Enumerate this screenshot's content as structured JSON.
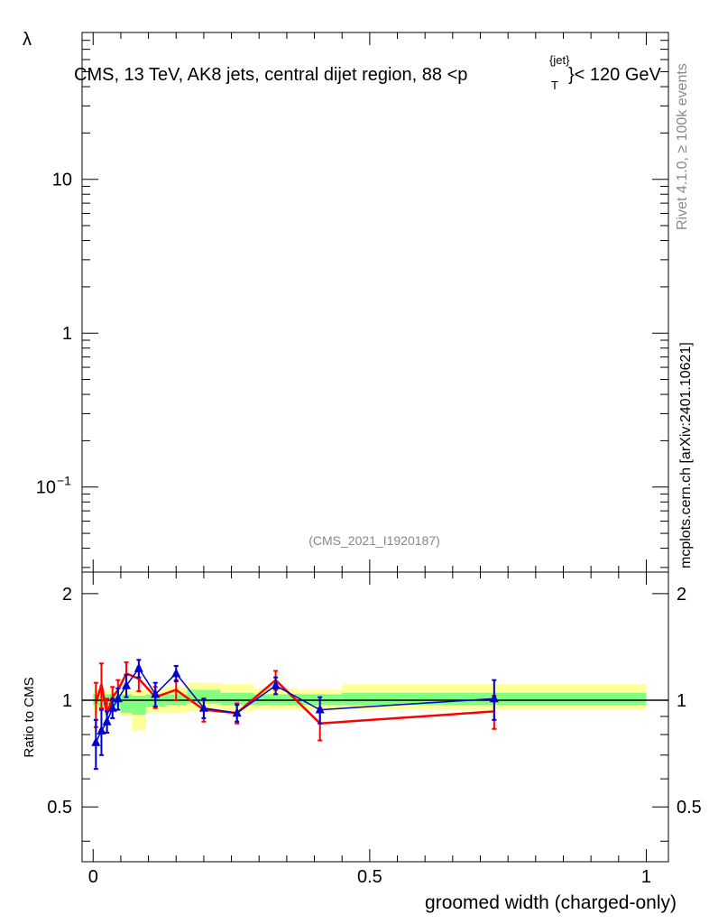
{
  "chart_data": [
    {
      "type": "line",
      "panel": "main",
      "title": "CMS, 13 TeV, AK8 jets, central dijet region, 88 <p_T^{jet}< 120 GeV",
      "title_parts": {
        "main": "CMS, 13 TeV, AK8 jets, central dijet region, 88 <p",
        "sub": "T",
        "sup": "{jet}",
        "tail": "}< 120 GeV"
      },
      "ylabel": "λ",
      "yscale": "log",
      "ylim": [
        0.028,
        90
      ],
      "y_ticks": [
        {
          "value": 10,
          "label": "10",
          "sup": ""
        },
        {
          "value": 1,
          "label": "1",
          "sup": ""
        },
        {
          "value": 0.1,
          "label": "10",
          "sup": "−1"
        }
      ],
      "xlim": [
        -0.02,
        1.04
      ],
      "analysis_label": "(CMS_2021_I1920187)",
      "series": []
    },
    {
      "type": "line",
      "panel": "ratio",
      "ylabel": "Ratio to CMS",
      "xlabel": "groomed width (charged-only)",
      "xlim": [
        -0.02,
        1.04
      ],
      "ylim": [
        0.35,
        2.3
      ],
      "x_ticks": [
        {
          "value": 0,
          "label": "0"
        },
        {
          "value": 0.5,
          "label": "0.5"
        },
        {
          "value": 1,
          "label": "1"
        }
      ],
      "y_ticks": [
        {
          "value": 0.5,
          "label": "0.5"
        },
        {
          "value": 1,
          "label": "1"
        },
        {
          "value": 2,
          "label": "2"
        }
      ],
      "reference_line": 1,
      "bands": [
        {
          "x0": 0.0,
          "x1": 0.01,
          "g": [
            0.97,
            1.04
          ],
          "y": [
            0.92,
            1.07
          ]
        },
        {
          "x0": 0.01,
          "x1": 0.02,
          "g": [
            0.96,
            1.05
          ],
          "y": [
            0.94,
            1.06
          ]
        },
        {
          "x0": 0.02,
          "x1": 0.03,
          "g": [
            0.97,
            1.04
          ],
          "y": [
            0.94,
            1.06
          ]
        },
        {
          "x0": 0.03,
          "x1": 0.04,
          "g": [
            0.97,
            1.04
          ],
          "y": [
            0.94,
            1.07
          ]
        },
        {
          "x0": 0.04,
          "x1": 0.05,
          "g": [
            0.96,
            1.04
          ],
          "y": [
            0.93,
            1.07
          ]
        },
        {
          "x0": 0.05,
          "x1": 0.07,
          "g": [
            0.92,
            1.04
          ],
          "y": [
            0.9,
            1.06
          ]
        },
        {
          "x0": 0.07,
          "x1": 0.095,
          "g": [
            0.91,
            1.03
          ],
          "y": [
            0.82,
            1.07
          ]
        },
        {
          "x0": 0.095,
          "x1": 0.13,
          "g": [
            0.96,
            1.04
          ],
          "y": [
            0.92,
            1.08
          ]
        },
        {
          "x0": 0.13,
          "x1": 0.17,
          "g": [
            0.97,
            1.04
          ],
          "y": [
            0.92,
            1.09
          ]
        },
        {
          "x0": 0.17,
          "x1": 0.23,
          "g": [
            0.98,
            1.07
          ],
          "y": [
            0.93,
            1.12
          ]
        },
        {
          "x0": 0.23,
          "x1": 0.29,
          "g": [
            0.97,
            1.05
          ],
          "y": [
            0.93,
            1.11
          ]
        },
        {
          "x0": 0.29,
          "x1": 0.37,
          "g": [
            0.97,
            1.04
          ],
          "y": [
            0.94,
            1.08
          ]
        },
        {
          "x0": 0.37,
          "x1": 0.45,
          "g": [
            0.97,
            1.04
          ],
          "y": [
            0.94,
            1.07
          ]
        },
        {
          "x0": 0.45,
          "x1": 1.0,
          "g": [
            0.97,
            1.05
          ],
          "y": [
            0.94,
            1.11
          ]
        }
      ],
      "series": [
        {
          "color": "#ff0000",
          "marker": "none",
          "x": [
            0.005,
            0.015,
            0.025,
            0.035,
            0.045,
            0.06,
            0.0825,
            0.1125,
            0.15,
            0.2,
            0.26,
            0.33,
            0.41,
            0.725
          ],
          "y": [
            0.98,
            1.11,
            0.91,
            1.02,
            1.07,
            1.19,
            1.15,
            1.02,
            1.07,
            0.94,
            0.92,
            1.14,
            0.86,
            0.93
          ],
          "err": [
            0.14,
            0.16,
            0.1,
            0.07,
            0.07,
            0.09,
            0.09,
            0.07,
            0.07,
            0.07,
            0.06,
            0.07,
            0.09,
            0.1
          ]
        },
        {
          "color": "#0000cc",
          "marker": "triangle",
          "x": [
            0.005,
            0.015,
            0.025,
            0.035,
            0.045,
            0.06,
            0.0825,
            0.1125,
            0.15,
            0.2,
            0.26,
            0.33,
            0.41,
            0.725
          ],
          "y": [
            0.76,
            0.82,
            0.87,
            0.95,
            1.01,
            1.1,
            1.23,
            1.04,
            1.19,
            0.95,
            0.92,
            1.1,
            0.94,
            1.01
          ],
          "err": [
            0.12,
            0.12,
            0.06,
            0.06,
            0.07,
            0.08,
            0.07,
            0.08,
            0.06,
            0.06,
            0.05,
            0.06,
            0.08,
            0.13
          ]
        }
      ]
    }
  ],
  "side_texts": {
    "rivet": "Rivet 4.1.0, ≥ 100k events",
    "mcplots": "mcplots.cern.ch [arXiv:2401.10621]"
  }
}
